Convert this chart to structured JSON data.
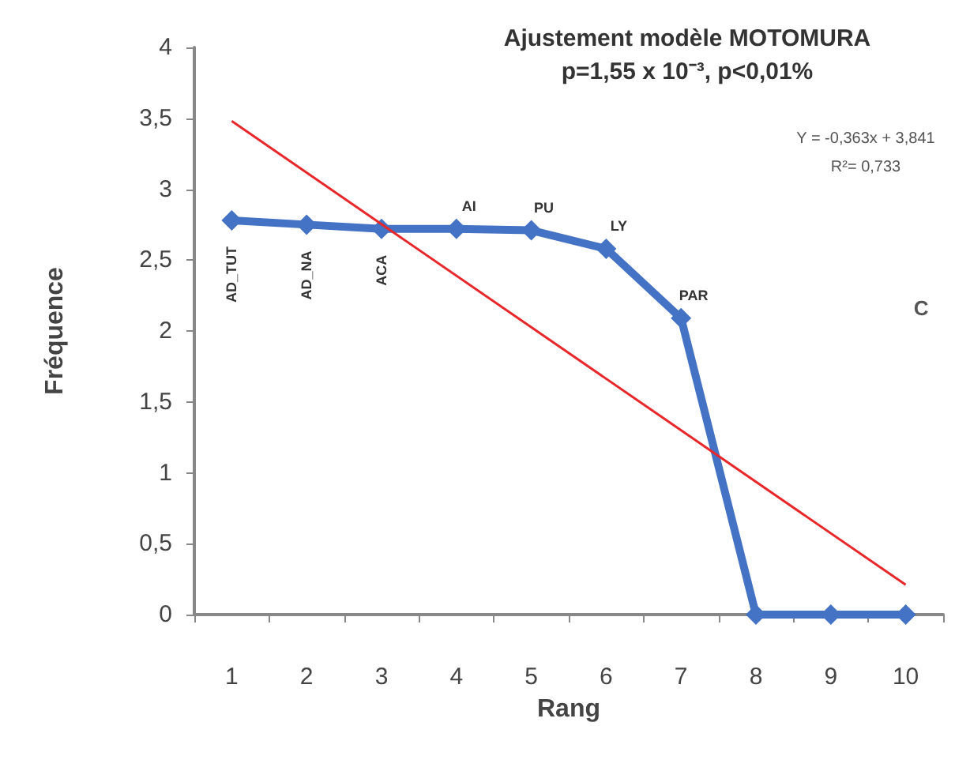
{
  "chart_data": {
    "type": "line",
    "title": "Ajustement modèle MOTOMURA",
    "subtitle": "p=1,55 x 10⁻³, p<0,01%",
    "xlabel": "Rang",
    "ylabel": "Fréquence",
    "categories": [
      "1",
      "2",
      "3",
      "4",
      "5",
      "6",
      "7",
      "8",
      "9",
      "10"
    ],
    "series": [
      {
        "color": "#4472c4",
        "marker": "diamond",
        "values": [
          2.78,
          2.75,
          2.72,
          2.72,
          2.71,
          2.58,
          2.09,
          0,
          0,
          0
        ],
        "value_labels": [
          "AD_TUT",
          "AD_NA",
          "ACA",
          "AI",
          "PU",
          "LY",
          "PAR",
          null,
          null,
          null
        ]
      },
      {
        "color": "#e8272a",
        "marker": "none",
        "x": [
          "1",
          "10"
        ],
        "values": [
          3.48,
          0.21
        ]
      }
    ],
    "ylim": [
      0,
      4
    ],
    "yticks": [
      0,
      {
        "value": 0.5,
        "label": "0,5"
      },
      1,
      {
        "value": 1.5,
        "label": "1,5"
      },
      2,
      {
        "value": 2.5,
        "label": "2,5"
      },
      3,
      {
        "value": 3.5,
        "label": "3,5"
      },
      4
    ],
    "annotations": [
      "Y = -0,363x + 3,841",
      "R²= 0,733",
      "C"
    ]
  }
}
